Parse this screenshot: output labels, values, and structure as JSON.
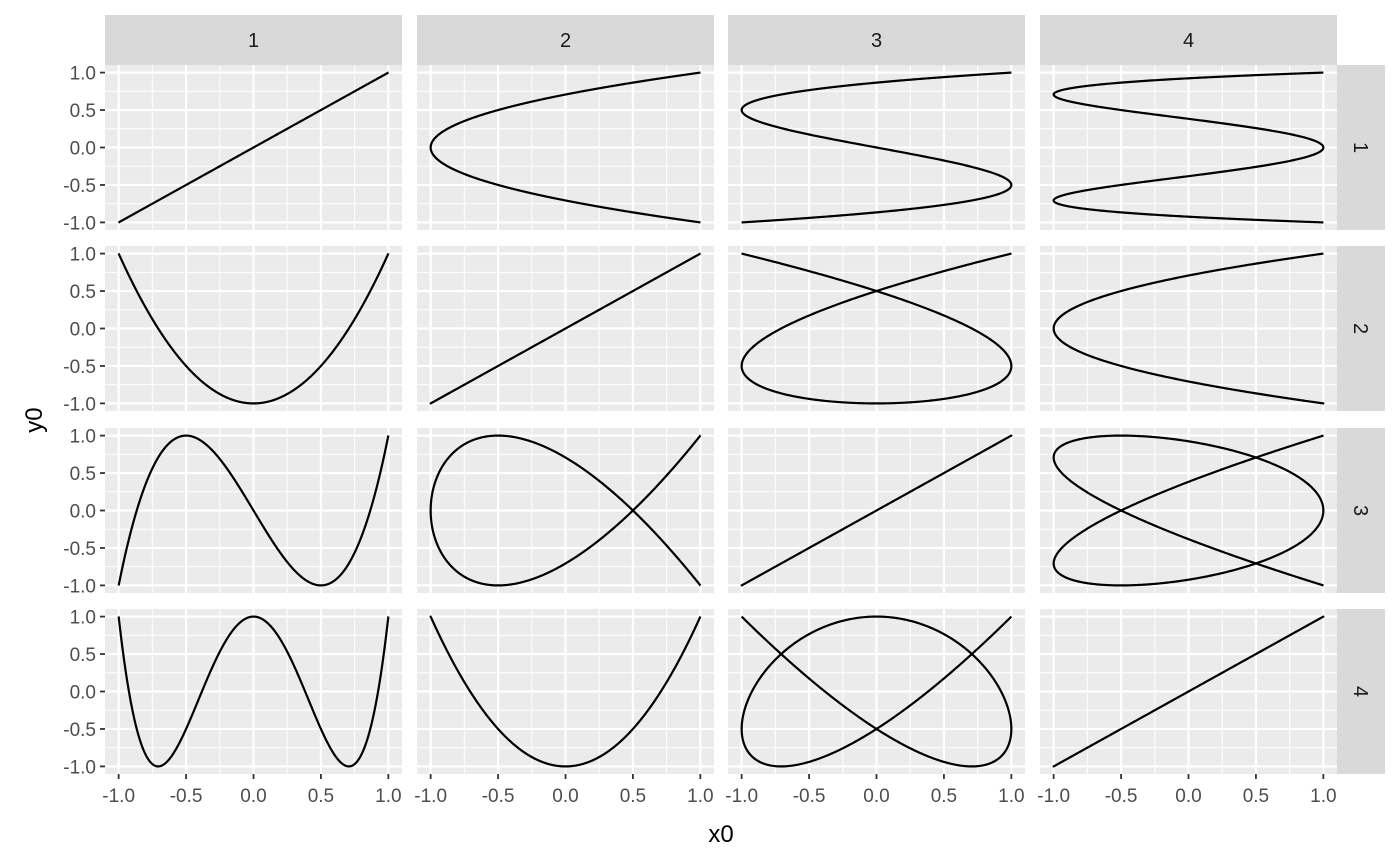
{
  "chart_data": {
    "type": "line",
    "facet": "grid",
    "xlabel": "x0",
    "ylabel": "y0",
    "xlim": [
      -1.0,
      1.0
    ],
    "ylim": [
      -1.0,
      1.0
    ],
    "x_ticks": [
      -1.0,
      -0.5,
      0.0,
      0.5,
      1.0
    ],
    "y_ticks": [
      -1.0,
      -0.5,
      0.0,
      0.5,
      1.0
    ],
    "x_tick_labels": [
      "-1.0",
      "-0.5",
      "0.0",
      "0.5",
      "1.0"
    ],
    "y_tick_labels": [
      "-1.0",
      "-0.5",
      "0.0",
      "0.5",
      "1.0"
    ],
    "col_strips": [
      "1",
      "2",
      "3",
      "4"
    ],
    "row_strips": [
      "1",
      "2",
      "3",
      "4"
    ],
    "grid": true,
    "curve_note": "panel(row r, col c): x0 = cos(c*t), y0 = cos(r*t), t in [0, pi]",
    "colors": {
      "panel_bg": "#ebebeb",
      "grid_major": "#ffffff",
      "strip_bg": "#d9d9d9",
      "line": "#000000"
    }
  }
}
